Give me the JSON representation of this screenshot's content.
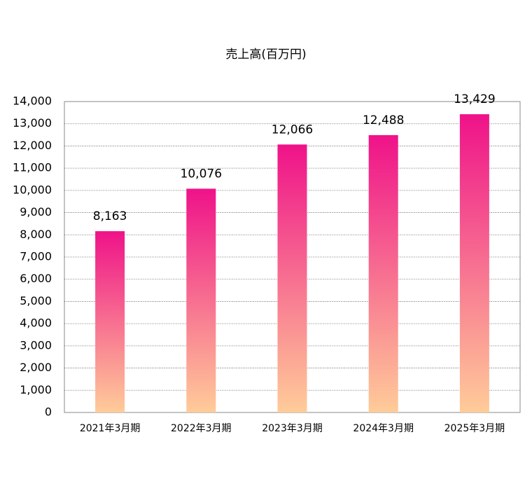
{
  "chart_data": {
    "type": "bar",
    "title": "売上高(百万円)",
    "categories": [
      "2021年3月期",
      "2022年3月期",
      "2023年3月期",
      "2024年3月期",
      "2025年3月期"
    ],
    "values": [
      8163,
      10076,
      12066,
      12488,
      13429
    ],
    "value_labels": [
      "8,163",
      "10,076",
      "12,066",
      "12,488",
      "13,429"
    ],
    "gradient": {
      "top": "#ef1289",
      "bottom": "#ffcc99"
    },
    "ylim": [
      0,
      14000
    ],
    "yticks": [
      0,
      {
        "value": 1000,
        "label": "1,000"
      },
      {
        "value": 2000,
        "label": "2,000"
      },
      {
        "value": 3000,
        "label": "3,000"
      },
      {
        "value": 4000,
        "label": "4,000"
      },
      {
        "value": 5000,
        "label": "5,000"
      },
      {
        "value": 6000,
        "label": "6,000"
      },
      {
        "value": 7000,
        "label": "7,000"
      },
      {
        "value": 8000,
        "label": "8,000"
      },
      {
        "value": 9000,
        "label": "9,000"
      },
      {
        "value": 10000,
        "label": "10,000"
      },
      {
        "value": 11000,
        "label": "11,000"
      },
      {
        "value": 12000,
        "label": "12,000"
      },
      {
        "value": 13000,
        "label": "13,000"
      },
      {
        "value": 14000,
        "label": "14,000"
      }
    ],
    "grid": true
  }
}
